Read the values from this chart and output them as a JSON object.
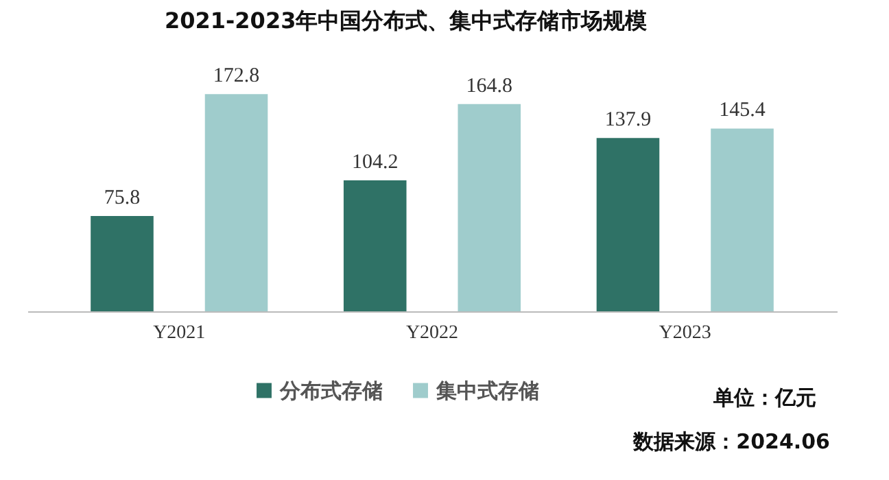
{
  "chart_data": {
    "type": "bar",
    "title": "2021-2023年中国分布式、集中式存储市场规模",
    "categories": [
      "Y2021",
      "Y2022",
      "Y2023"
    ],
    "series": [
      {
        "name": "分布式存储",
        "color": "#2f7266",
        "values": [
          75.8,
          104.2,
          137.9
        ]
      },
      {
        "name": "集中式存储",
        "color": "#9fcccc",
        "values": [
          172.8,
          164.8,
          145.4
        ]
      }
    ],
    "data_labels": true,
    "legend": "bottom",
    "grid": false,
    "annotations": [
      "单位：亿元",
      "数据来源：2024.06"
    ]
  }
}
